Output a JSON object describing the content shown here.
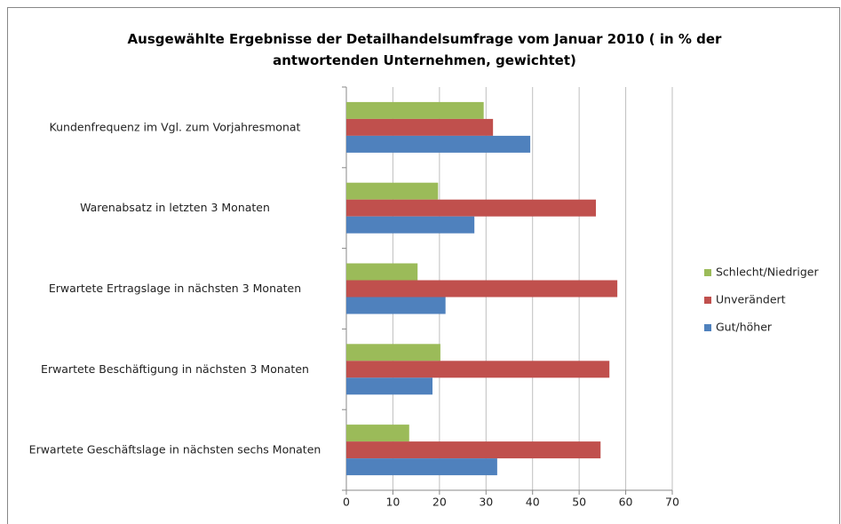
{
  "chart_data": {
    "type": "bar",
    "orientation": "horizontal",
    "title": "Ausgewählte Ergebnisse der Detailhandelsumfrage vom Januar 2010 ( in % der antwortenden Unternehmen, gewichtet)",
    "categories": [
      "Kundenfrequenz im Vgl. zum Vorjahresmonat",
      "Warenabsatz in letzten 3 Monaten",
      "Erwartete Ertragslage in nächsten 3 Monaten",
      "Erwartete Beschäftigung in nächsten 3 Monaten",
      "Erwartete Geschäftslage in nächsten sechs Monaten"
    ],
    "series": [
      {
        "name": "Schlecht/Niedriger",
        "color": "#9bbb59",
        "values": [
          29.5,
          19.7,
          15.3,
          20.2,
          13.5
        ]
      },
      {
        "name": "Unverändert",
        "color": "#c0504d",
        "values": [
          31.5,
          53.6,
          58.2,
          56.5,
          54.6
        ]
      },
      {
        "name": "Gut/höher",
        "color": "#4f81bd",
        "values": [
          39.5,
          27.5,
          21.3,
          18.5,
          32.4
        ]
      }
    ],
    "xlim": [
      0,
      70
    ],
    "xticks": [
      0,
      10,
      20,
      30,
      40,
      50,
      60,
      70
    ],
    "grid": true,
    "legend": "right"
  }
}
